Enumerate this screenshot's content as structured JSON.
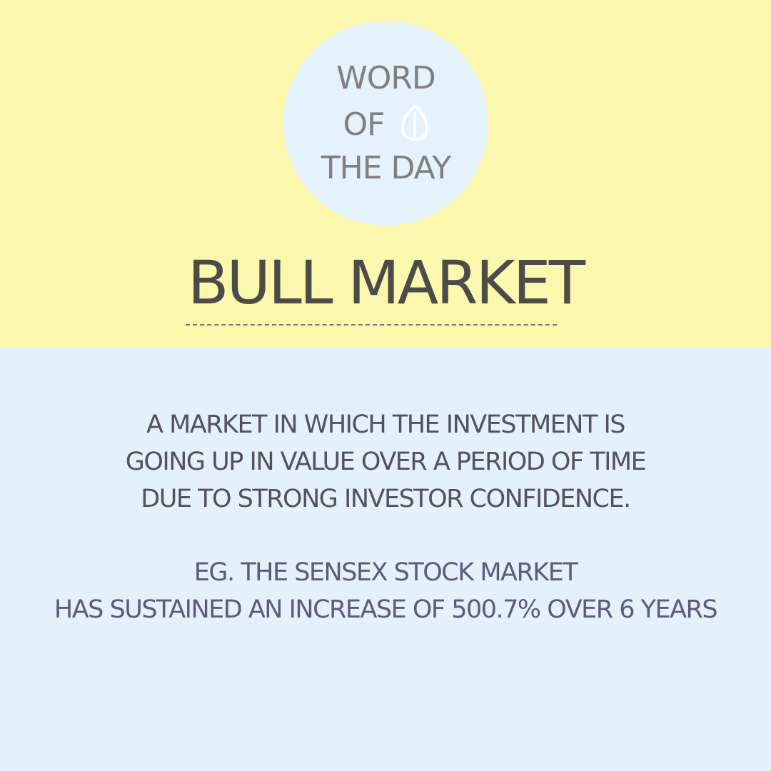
{
  "badge": {
    "line1": "WORD",
    "line2": "OF",
    "line3": "THE DAY",
    "icon": "leaf-icon"
  },
  "headline": "BULL MARKET",
  "definition": {
    "line1": "A MARKET IN WHICH THE INVESTMENT IS",
    "line2": "GOING UP IN VALUE OVER A PERIOD OF TIME",
    "line3": "DUE TO STRONG INVESTOR CONFIDENCE."
  },
  "example": {
    "line1": "EG. THE SENSEX STOCK MARKET",
    "line2": "HAS SUSTAINED AN INCREASE OF 500.7% OVER 6 YEARS"
  },
  "colors": {
    "top_background": "#fbf7ac",
    "bottom_background": "#e3f1fb",
    "badge_background": "#e4f2fc",
    "badge_text": "#808080",
    "headline_text": "#4d4b48",
    "body_text": "#525160"
  }
}
